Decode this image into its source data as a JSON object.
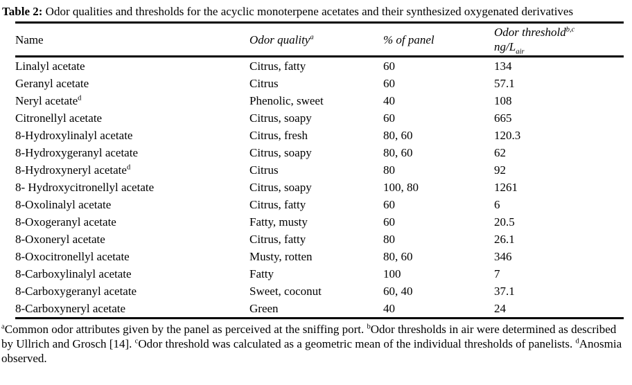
{
  "colors": {
    "background": "#ffffff",
    "text": "#000000",
    "rule": "#000000"
  },
  "caption": {
    "label": "Table 2:",
    "text": " Odor qualities and thresholds for the acyclic monoterpene acetates and their synthesized oxygenated derivatives"
  },
  "table": {
    "columns": [
      {
        "id": "name",
        "label": "Name",
        "sup": "",
        "italic": false,
        "line2": "",
        "line2_sub": ""
      },
      {
        "id": "quality",
        "label": "Odor quality",
        "sup": "a",
        "italic": true,
        "line2": "",
        "line2_sub": ""
      },
      {
        "id": "panel",
        "label": "% of panel",
        "sup": "",
        "italic": true,
        "line2": "",
        "line2_sub": ""
      },
      {
        "id": "threshold",
        "label": "Odor threshold",
        "sup": "b,c",
        "italic": true,
        "line2": "ng/L",
        "line2_sub": "air"
      }
    ],
    "rows": [
      {
        "name": "Linalyl acetate",
        "name_sup": "",
        "quality": "Citrus, fatty",
        "panel": "60",
        "threshold": "134"
      },
      {
        "name": "Geranyl acetate",
        "name_sup": "",
        "quality": "Citrus",
        "panel": "60",
        "threshold": "57.1"
      },
      {
        "name": "Neryl acetate",
        "name_sup": "d",
        "quality": "Phenolic, sweet",
        "panel": "40",
        "threshold": "108"
      },
      {
        "name": "Citronellyl acetate",
        "name_sup": "",
        "quality": "Citrus, soapy",
        "panel": "60",
        "threshold": "665"
      },
      {
        "name": "8-Hydroxylinalyl acetate",
        "name_sup": "",
        "quality": "Citrus, fresh",
        "panel": "80, 60",
        "threshold": "120.3"
      },
      {
        "name": "8-Hydroxygeranyl acetate",
        "name_sup": "",
        "quality": "Citrus, soapy",
        "panel": "80, 60",
        "threshold": "62"
      },
      {
        "name": "8-Hydroxyneryl acetate",
        "name_sup": "d",
        "quality": "Citrus",
        "panel": "80",
        "threshold": "92"
      },
      {
        "name": "8- Hydroxycitronellyl acetate",
        "name_sup": "",
        "quality": "Citrus, soapy",
        "panel": "100, 80",
        "threshold": "1261"
      },
      {
        "name": "8-Oxolinalyl acetate",
        "name_sup": "",
        "quality": "Citrus, fatty",
        "panel": "60",
        "threshold": "6"
      },
      {
        "name": "8-Oxogeranyl acetate",
        "name_sup": "",
        "quality": "Fatty, musty",
        "panel": "60",
        "threshold": "20.5"
      },
      {
        "name": "8-Oxoneryl acetate",
        "name_sup": "",
        "quality": "Citrus, fatty",
        "panel": "80",
        "threshold": "26.1"
      },
      {
        "name": "8-Oxocitronellyl acetate",
        "name_sup": "",
        "quality": "Musty, rotten",
        "panel": "80, 60",
        "threshold": "346"
      },
      {
        "name": "8-Carboxylinalyl acetate",
        "name_sup": "",
        "quality": "Fatty",
        "panel": "100",
        "threshold": "7"
      },
      {
        "name": "8-Carboxygeranyl acetate",
        "name_sup": "",
        "quality": "Sweet, coconut",
        "panel": "60, 40",
        "threshold": "37.1"
      },
      {
        "name": "8-Carboxyneryl acetate",
        "name_sup": "",
        "quality": "Green",
        "panel": "40",
        "threshold": "24"
      }
    ]
  },
  "footnotes": {
    "segments": [
      {
        "marker": "a",
        "text": "Common odor attributes given by the panel as perceived at the sniffing port. "
      },
      {
        "marker": "b",
        "text": "Odor thresholds in air were determined as described by Ullrich and Grosch [14]. "
      },
      {
        "marker": "c",
        "text": "Odor threshold was calculated as a geometric mean of the individual thresholds of panelists. "
      },
      {
        "marker": "d",
        "text": "Anosmia observed."
      }
    ]
  }
}
